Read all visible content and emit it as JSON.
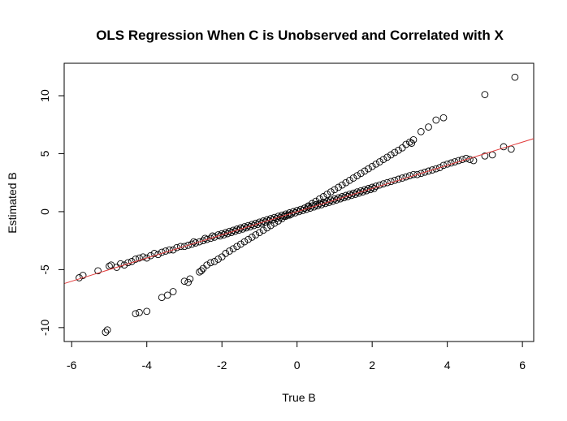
{
  "chart_data": {
    "type": "scatter",
    "title": "OLS Regression When C is Unobserved and Correlated with X",
    "xlabel": "True B",
    "ylabel": "Estimated B",
    "xlim": [
      -6.2,
      6.3
    ],
    "ylim": [
      -11.2,
      12.8
    ],
    "x_ticks": [
      -6,
      -4,
      -2,
      0,
      2,
      4,
      6
    ],
    "y_ticks": [
      -10,
      -5,
      0,
      5,
      10
    ],
    "x_tick_labels": [
      "-6",
      "-4",
      "-2",
      "0",
      "2",
      "4",
      "6"
    ],
    "y_tick_labels": [
      "-10",
      "-5",
      "0",
      "5",
      "10"
    ],
    "grid": false,
    "legend": "none",
    "point_color": "#000000",
    "line_color": "#e23c3c",
    "regression_line": {
      "intercept": 0.0,
      "slope": 1.0
    },
    "series": [
      {
        "values": [
          [
            -5.8,
            -5.7
          ],
          [
            -5.7,
            -5.5
          ],
          [
            -5.3,
            -5.1
          ],
          [
            -5.0,
            -4.7
          ],
          [
            -4.95,
            -4.6
          ],
          [
            -4.8,
            -4.8
          ],
          [
            -4.7,
            -4.5
          ],
          [
            -4.6,
            -4.6
          ],
          [
            -4.5,
            -4.4
          ],
          [
            -4.4,
            -4.3
          ],
          [
            -4.3,
            -4.1
          ],
          [
            -4.2,
            -4.0
          ],
          [
            -4.1,
            -3.9
          ],
          [
            -4.0,
            -4.0
          ],
          [
            -3.9,
            -3.8
          ],
          [
            -3.8,
            -3.6
          ],
          [
            -3.7,
            -3.7
          ],
          [
            -3.6,
            -3.5
          ],
          [
            -3.5,
            -3.4
          ],
          [
            -3.4,
            -3.3
          ],
          [
            -3.3,
            -3.3
          ],
          [
            -3.2,
            -3.1
          ],
          [
            -3.1,
            -3.0
          ],
          [
            -3.0,
            -3.0
          ],
          [
            -2.9,
            -2.9
          ],
          [
            -2.8,
            -2.8
          ],
          [
            -2.75,
            -2.6
          ],
          [
            -2.7,
            -2.7
          ],
          [
            -2.6,
            -2.6
          ],
          [
            -2.5,
            -2.5
          ],
          [
            -2.45,
            -2.3
          ],
          [
            -2.4,
            -2.4
          ],
          [
            -2.3,
            -2.3
          ],
          [
            -2.25,
            -2.1
          ],
          [
            -2.2,
            -2.2
          ],
          [
            -2.1,
            -2.0
          ],
          [
            -2.05,
            -2.1
          ],
          [
            -2.0,
            -1.9
          ],
          [
            -1.95,
            -2.0
          ],
          [
            -1.9,
            -1.8
          ],
          [
            -1.85,
            -1.9
          ],
          [
            -1.8,
            -1.7
          ],
          [
            -1.75,
            -1.8
          ],
          [
            -1.7,
            -1.6
          ],
          [
            -1.65,
            -1.7
          ],
          [
            -1.6,
            -1.5
          ],
          [
            -1.55,
            -1.6
          ],
          [
            -1.5,
            -1.4
          ],
          [
            -1.45,
            -1.5
          ],
          [
            -1.4,
            -1.3
          ],
          [
            -1.35,
            -1.4
          ],
          [
            -1.3,
            -1.2
          ],
          [
            -1.25,
            -1.3
          ],
          [
            -1.2,
            -1.1
          ],
          [
            -1.15,
            -1.2
          ],
          [
            -1.1,
            -1.0
          ],
          [
            -1.05,
            -1.1
          ],
          [
            -1.0,
            -0.9
          ],
          [
            -0.95,
            -1.0
          ],
          [
            -0.9,
            -0.8
          ],
          [
            -0.85,
            -0.9
          ],
          [
            -0.8,
            -0.7
          ],
          [
            -0.75,
            -0.8
          ],
          [
            -0.7,
            -0.6
          ],
          [
            -0.65,
            -0.7
          ],
          [
            -0.6,
            -0.5
          ],
          [
            -0.55,
            -0.6
          ],
          [
            -0.5,
            -0.4
          ],
          [
            -0.45,
            -0.5
          ],
          [
            -0.4,
            -0.3
          ],
          [
            -0.35,
            -0.4
          ],
          [
            -0.3,
            -0.2
          ],
          [
            -0.25,
            -0.3
          ],
          [
            -0.2,
            -0.1
          ],
          [
            -0.15,
            -0.2
          ],
          [
            -0.1,
            0.0
          ],
          [
            -0.05,
            -0.1
          ],
          [
            0.0,
            0.1
          ],
          [
            0.05,
            0.0
          ],
          [
            0.1,
            0.2
          ],
          [
            0.15,
            0.1
          ],
          [
            0.2,
            0.3
          ],
          [
            0.25,
            0.2
          ],
          [
            0.3,
            0.4
          ],
          [
            0.35,
            0.3
          ],
          [
            0.4,
            0.5
          ],
          [
            0.45,
            0.4
          ],
          [
            0.5,
            0.6
          ],
          [
            0.55,
            0.5
          ],
          [
            0.6,
            0.7
          ],
          [
            0.65,
            0.6
          ],
          [
            0.7,
            0.8
          ],
          [
            0.75,
            0.7
          ],
          [
            0.8,
            0.9
          ],
          [
            0.85,
            0.8
          ],
          [
            0.9,
            1.0
          ],
          [
            0.95,
            0.9
          ],
          [
            1.0,
            1.1
          ],
          [
            1.05,
            1.0
          ],
          [
            1.1,
            1.2
          ],
          [
            1.15,
            1.1
          ],
          [
            1.2,
            1.3
          ],
          [
            1.25,
            1.2
          ],
          [
            1.3,
            1.4
          ],
          [
            1.35,
            1.3
          ],
          [
            1.4,
            1.5
          ],
          [
            1.45,
            1.4
          ],
          [
            1.5,
            1.6
          ],
          [
            1.55,
            1.5
          ],
          [
            1.6,
            1.7
          ],
          [
            1.65,
            1.6
          ],
          [
            1.7,
            1.8
          ],
          [
            1.75,
            1.7
          ],
          [
            1.8,
            1.9
          ],
          [
            1.85,
            1.8
          ],
          [
            1.9,
            2.0
          ],
          [
            1.95,
            1.9
          ],
          [
            2.0,
            2.1
          ],
          [
            2.05,
            2.0
          ],
          [
            2.1,
            2.2
          ],
          [
            2.2,
            2.3
          ],
          [
            2.3,
            2.4
          ],
          [
            2.4,
            2.5
          ],
          [
            2.5,
            2.6
          ],
          [
            2.6,
            2.7
          ],
          [
            2.7,
            2.8
          ],
          [
            2.8,
            2.9
          ],
          [
            2.9,
            3.0
          ],
          [
            3.0,
            3.1
          ],
          [
            3.1,
            3.2
          ],
          [
            3.2,
            3.2
          ],
          [
            3.3,
            3.3
          ],
          [
            3.4,
            3.4
          ],
          [
            3.5,
            3.5
          ],
          [
            3.6,
            3.6
          ],
          [
            3.7,
            3.7
          ],
          [
            3.8,
            3.8
          ],
          [
            3.9,
            4.0
          ],
          [
            4.0,
            4.1
          ],
          [
            4.1,
            4.2
          ],
          [
            4.2,
            4.3
          ],
          [
            4.3,
            4.4
          ],
          [
            4.4,
            4.5
          ],
          [
            4.5,
            4.6
          ],
          [
            4.6,
            4.5
          ],
          [
            4.7,
            4.4
          ],
          [
            5.0,
            4.8
          ],
          [
            5.2,
            4.9
          ],
          [
            5.5,
            5.6
          ],
          [
            5.7,
            5.4
          ],
          [
            -5.1,
            -10.4
          ],
          [
            -5.05,
            -10.2
          ],
          [
            -4.3,
            -8.8
          ],
          [
            -4.2,
            -8.7
          ],
          [
            -4.0,
            -8.6
          ],
          [
            -3.6,
            -7.4
          ],
          [
            -3.45,
            -7.2
          ],
          [
            -3.3,
            -6.9
          ],
          [
            -3.0,
            -6.0
          ],
          [
            -2.9,
            -6.1
          ],
          [
            -2.85,
            -5.8
          ],
          [
            -2.6,
            -5.2
          ],
          [
            -2.55,
            -5.1
          ],
          [
            -2.5,
            -4.9
          ],
          [
            -2.4,
            -4.6
          ],
          [
            -2.3,
            -4.4
          ],
          [
            -2.2,
            -4.3
          ],
          [
            -2.1,
            -4.1
          ],
          [
            -2.0,
            -3.9
          ],
          [
            -1.9,
            -3.6
          ],
          [
            -1.8,
            -3.4
          ],
          [
            -1.7,
            -3.2
          ],
          [
            -1.6,
            -3.0
          ],
          [
            -1.5,
            -2.8
          ],
          [
            -1.4,
            -2.6
          ],
          [
            -1.3,
            -2.4
          ],
          [
            -1.2,
            -2.2
          ],
          [
            -1.1,
            -2.0
          ],
          [
            -1.0,
            -1.8
          ],
          [
            -0.9,
            -1.6
          ],
          [
            -0.8,
            -1.4
          ],
          [
            -0.7,
            -1.2
          ],
          [
            -0.6,
            -1.0
          ],
          [
            -0.5,
            -0.8
          ],
          [
            -0.4,
            -0.6
          ],
          [
            -0.3,
            -0.4
          ],
          [
            -0.2,
            -0.3
          ],
          [
            0.2,
            0.3
          ],
          [
            0.3,
            0.5
          ],
          [
            0.4,
            0.7
          ],
          [
            0.5,
            0.9
          ],
          [
            0.6,
            1.1
          ],
          [
            0.7,
            1.3
          ],
          [
            0.8,
            1.5
          ],
          [
            0.9,
            1.7
          ],
          [
            1.0,
            1.9
          ],
          [
            1.1,
            2.1
          ],
          [
            1.2,
            2.3
          ],
          [
            1.3,
            2.5
          ],
          [
            1.4,
            2.7
          ],
          [
            1.5,
            2.9
          ],
          [
            1.6,
            3.1
          ],
          [
            1.7,
            3.3
          ],
          [
            1.8,
            3.5
          ],
          [
            1.9,
            3.7
          ],
          [
            2.0,
            3.9
          ],
          [
            2.1,
            4.1
          ],
          [
            2.2,
            4.3
          ],
          [
            2.3,
            4.5
          ],
          [
            2.4,
            4.7
          ],
          [
            2.5,
            4.9
          ],
          [
            2.6,
            5.1
          ],
          [
            2.7,
            5.3
          ],
          [
            2.8,
            5.5
          ],
          [
            2.9,
            5.8
          ],
          [
            3.0,
            6.0
          ],
          [
            3.05,
            5.9
          ],
          [
            3.1,
            6.2
          ],
          [
            3.3,
            6.9
          ],
          [
            3.5,
            7.3
          ],
          [
            3.7,
            7.9
          ],
          [
            3.9,
            8.1
          ],
          [
            5.0,
            10.1
          ],
          [
            5.8,
            11.6
          ]
        ]
      }
    ]
  }
}
